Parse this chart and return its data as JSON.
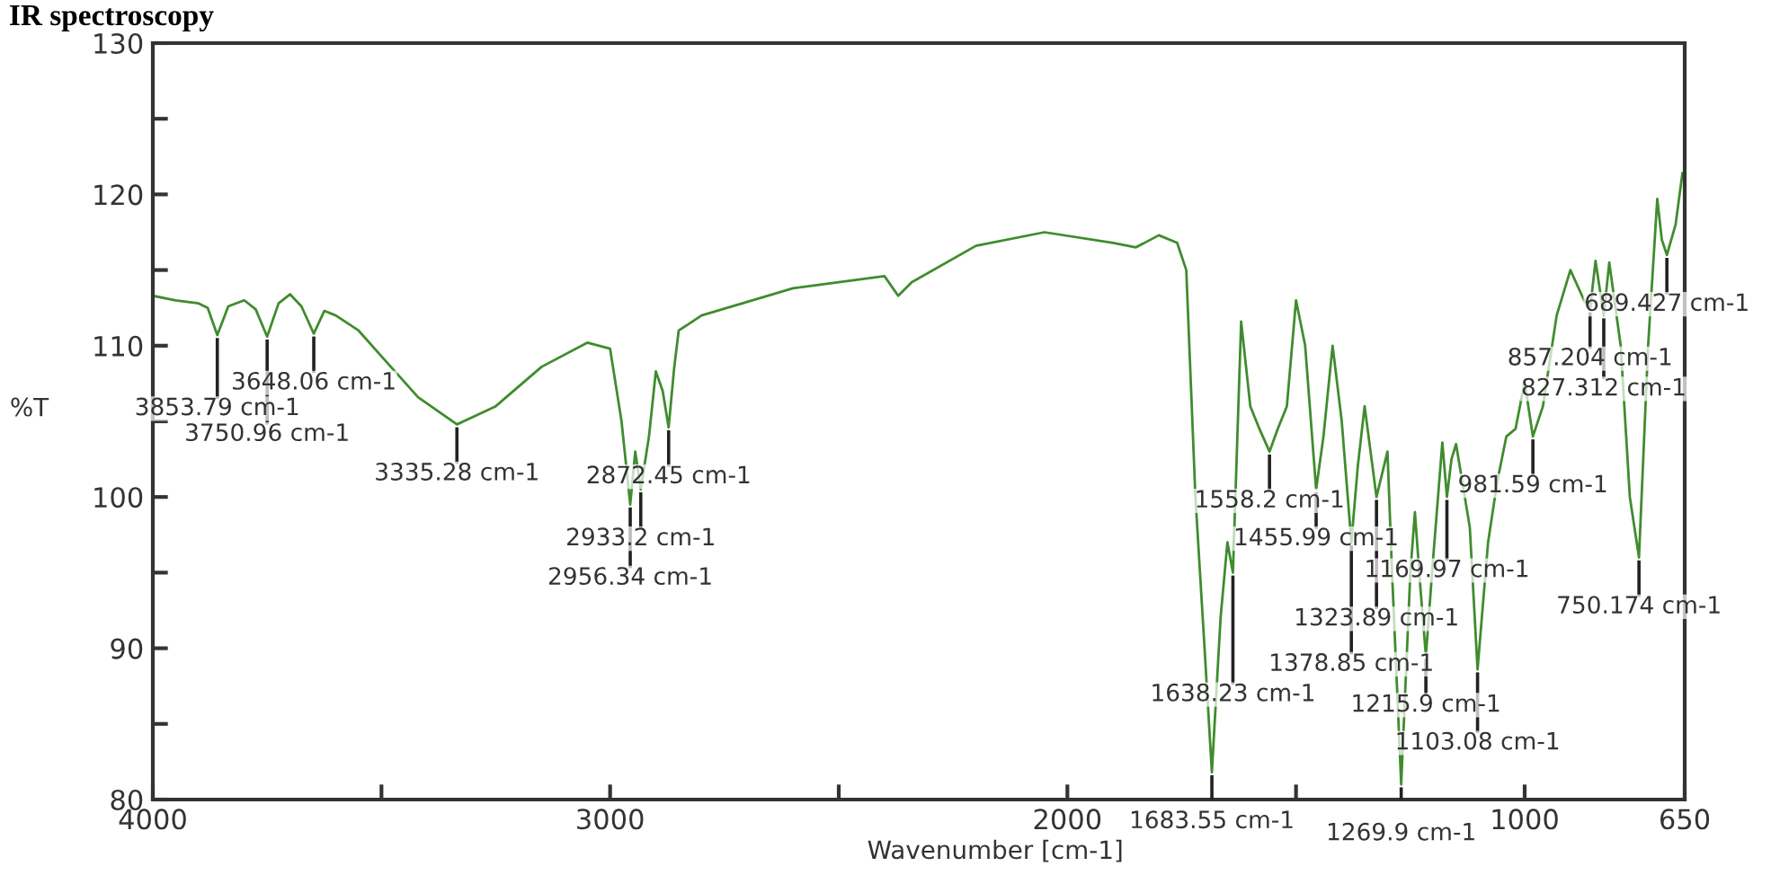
{
  "chart_data": {
    "type": "line",
    "title": "IR spectroscopy",
    "xlabel": "Wavenumber [cm-1]",
    "ylabel": "%T",
    "x": [
      4000,
      3950,
      3900,
      3880,
      3859,
      3835,
      3800,
      3775,
      3750,
      3725,
      3700,
      3675,
      3648,
      3625,
      3600,
      3550,
      3500,
      3420,
      3335,
      3250,
      3150,
      3050,
      3000,
      2975,
      2956,
      2945,
      2933,
      2915,
      2900,
      2885,
      2872,
      2860,
      2850,
      2800,
      2600,
      2400,
      2370,
      2340,
      2200,
      2050,
      1900,
      1850,
      1800,
      1760,
      1740,
      1720,
      1700,
      1684,
      1665,
      1650,
      1638,
      1620,
      1600,
      1580,
      1558,
      1540,
      1520,
      1500,
      1480,
      1456,
      1440,
      1420,
      1400,
      1379,
      1365,
      1350,
      1324,
      1300,
      1290,
      1270,
      1250,
      1240,
      1228,
      1216,
      1200,
      1180,
      1170,
      1160,
      1150,
      1120,
      1103,
      1080,
      1060,
      1040,
      1020,
      1000,
      982,
      960,
      930,
      900,
      870,
      857,
      845,
      827,
      815,
      790,
      770,
      750,
      730,
      710,
      700,
      689,
      670,
      655
    ],
    "series": [
      {
        "color": "#3f8c2e",
        "values": [
          113.3,
          113.0,
          112.8,
          112.5,
          110.7,
          112.6,
          113.0,
          112.4,
          110.6,
          112.8,
          113.4,
          112.6,
          110.8,
          112.3,
          112.0,
          111.0,
          109.3,
          106.6,
          104.8,
          106.0,
          108.6,
          110.2,
          109.8,
          105.0,
          99.5,
          103.0,
          100.5,
          104.0,
          108.3,
          107.0,
          104.6,
          108.5,
          111.0,
          112.0,
          113.8,
          114.6,
          113.3,
          114.2,
          116.6,
          117.5,
          116.8,
          116.5,
          117.3,
          116.8,
          115.0,
          100.0,
          90.0,
          81.8,
          92.0,
          97.0,
          95.0,
          111.6,
          106.0,
          104.5,
          103.0,
          104.5,
          106.0,
          113.0,
          110.0,
          100.5,
          104.0,
          110.0,
          105.0,
          97.0,
          102.0,
          106.0,
          100.0,
          103.0,
          95.0,
          81.0,
          95.0,
          99.0,
          94.0,
          89.5,
          96.0,
          103.6,
          100.0,
          102.5,
          103.5,
          98.0,
          88.6,
          97.0,
          101.0,
          104.0,
          104.5,
          107.6,
          104.0,
          106.0,
          112.0,
          115.0,
          113.0,
          112.4,
          115.6,
          112.0,
          115.5,
          110.0,
          100.0,
          96.0,
          110.0,
          119.7,
          117.0,
          116.0,
          118.0,
          121.4
        ]
      }
    ],
    "xlim": [
      4000,
      650
    ],
    "xticks": [
      4000,
      {
        "value": 3500,
        "label": null
      },
      3000,
      {
        "value": 2500,
        "label": null
      },
      2000,
      {
        "value": 1500,
        "label": null
      },
      1000,
      650
    ],
    "ylim": [
      80,
      130
    ],
    "yticks": [
      80,
      {
        "value": 85,
        "label": null
      },
      90,
      {
        "value": 95,
        "label": null
      },
      100,
      {
        "value": 105,
        "label": null
      },
      110,
      {
        "value": 115,
        "label": null
      },
      120,
      {
        "value": 125,
        "label": null
      },
      130
    ],
    "grid": false,
    "legend": false,
    "marker": "none",
    "line_style": "solid",
    "annotations": [
      {
        "text": "3853.79 cm-1",
        "x": 3859,
        "y": 110.7
      },
      {
        "text": "3750.96 cm-1",
        "x": 3750,
        "y": 110.6
      },
      {
        "text": "3648.06 cm-1",
        "x": 3648,
        "y": 110.8
      },
      {
        "text": "3335.28 cm-1",
        "x": 3335,
        "y": 104.8
      },
      {
        "text": "2872.45 cm-1",
        "x": 2872,
        "y": 104.6
      },
      {
        "text": "2933.2 cm-1",
        "x": 2933,
        "y": 100.5
      },
      {
        "text": "2956.34 cm-1",
        "x": 2956,
        "y": 99.5
      },
      {
        "text": "1558.2 cm-1",
        "x": 1558,
        "y": 103.0
      },
      {
        "text": "1455.99 cm-1",
        "x": 1456,
        "y": 100.5
      },
      {
        "text": "1169.97 cm-1",
        "x": 1170,
        "y": 100.0
      },
      {
        "text": "1323.89 cm-1",
        "x": 1324,
        "y": 100.0
      },
      {
        "text": "1378.85 cm-1",
        "x": 1379,
        "y": 97.0
      },
      {
        "text": "1638.23 cm-1",
        "x": 1638,
        "y": 95.0
      },
      {
        "text": "1215.9 cm-1",
        "x": 1216,
        "y": 89.5
      },
      {
        "text": "1103.08 cm-1",
        "x": 1103,
        "y": 88.6
      },
      {
        "text": "1683.55 cm-1",
        "x": 1684,
        "y": 81.8
      },
      {
        "text": "1269.9 cm-1",
        "x": 1270,
        "y": 81.0
      },
      {
        "text": "981.59 cm-1",
        "x": 982,
        "y": 104.0
      },
      {
        "text": "750.174 cm-1",
        "x": 750,
        "y": 96.0
      },
      {
        "text": "857.204 cm-1",
        "x": 857,
        "y": 112.4
      },
      {
        "text": "827.312 cm-1",
        "x": 827,
        "y": 112.0
      },
      {
        "text": "689.427 cm-1",
        "x": 689,
        "y": 116.0
      }
    ]
  }
}
